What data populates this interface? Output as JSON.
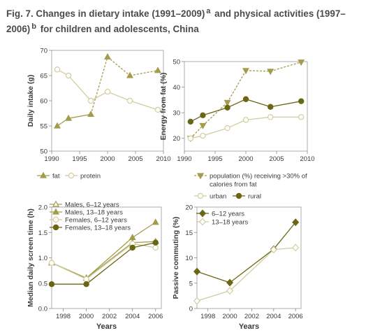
{
  "figure": {
    "title_prefix": "Fig. 7. Changes in dietary intake (1991–2009)",
    "title_sup_a": "a",
    "title_middle": " and physical activities (1997–2006)",
    "title_sup_b": "b",
    "title_suffix": " for children and adolescents, China"
  },
  "colors": {
    "series_dark": "#6b6614",
    "series_light": "#d2cd9e",
    "series_mid": "#a49c4c",
    "axis": "#8a8a8a",
    "frame": "#9a9a9a",
    "text": "#3a3a3a"
  },
  "chart_data": [
    {
      "type": "line",
      "ylabel": "Daily intake (g)",
      "xlabel": "",
      "xlim": [
        1990,
        2010
      ],
      "ylim": [
        50,
        70
      ],
      "xticks": [
        1990,
        1995,
        2000,
        2005,
        2010
      ],
      "yticks": [
        50,
        55,
        60,
        65,
        70
      ],
      "grid": false,
      "legend_position": "bottom",
      "legend_columns": 2,
      "series": [
        {
          "name": "fat",
          "marker": "triangle-up",
          "filled": true,
          "dashed_from_index": 2,
          "color": "#a49c4c",
          "x": [
            1991,
            1993,
            1997,
            2000,
            2004,
            2009
          ],
          "y": [
            55,
            56.5,
            57.3,
            68.7,
            65,
            66
          ]
        },
        {
          "name": "protein",
          "marker": "circle",
          "filled": false,
          "color": "#d2cd9e",
          "x": [
            1991,
            1993,
            1997,
            2000,
            2004,
            2009
          ],
          "y": [
            66.2,
            65,
            60,
            61.8,
            60,
            58.2
          ]
        }
      ]
    },
    {
      "type": "line",
      "ylabel": "Energy from fat (%)",
      "xlabel": "",
      "xlim": [
        1990,
        2010
      ],
      "ylim": [
        15,
        50
      ],
      "xticks": [
        1990,
        1995,
        2000,
        2005,
        2010
      ],
      "yticks": [
        20,
        30,
        40,
        50
      ],
      "grid": false,
      "legend_position": "bottom",
      "legend_columns": 2,
      "series": [
        {
          "name": "population (%) receiving >30% of calories from fat",
          "marker": "triangle-down",
          "filled": true,
          "dashed": true,
          "color": "#a49c4c",
          "x": [
            1991,
            1993,
            1997,
            2000,
            2004,
            2009
          ],
          "y": [
            20,
            25,
            34,
            46.5,
            46.2,
            49.8
          ]
        },
        {
          "name": "urban",
          "marker": "circle",
          "filled": false,
          "color": "#d2cd9e",
          "x": [
            1991,
            1993,
            1997,
            2000,
            2004,
            2009
          ],
          "y": [
            20,
            21,
            24,
            27.2,
            28.3,
            28.3
          ]
        },
        {
          "name": "rural",
          "marker": "circle",
          "filled": true,
          "color": "#6b6614",
          "x": [
            1991,
            1993,
            1997,
            2000,
            2004,
            2009
          ],
          "y": [
            26.5,
            29,
            32,
            35.3,
            32.3,
            34.5
          ]
        }
      ]
    },
    {
      "type": "line",
      "ylabel": "Median daily screen time (h)",
      "xlabel": "Years",
      "xlim": [
        1997,
        2006.5
      ],
      "ylim": [
        0,
        2.0
      ],
      "xticks": [
        1998,
        2000,
        2002,
        2004,
        2006
      ],
      "yticks": [
        0.0,
        0.5,
        1.0,
        1.5,
        2.0
      ],
      "ytick_labels": [
        "0.0",
        "0.5",
        "1.0",
        "1.5",
        "2.0"
      ],
      "grid": false,
      "legend_position": "top-left",
      "legend_columns": 1,
      "series": [
        {
          "name": "Males, 6–12 years",
          "marker": "triangle-up",
          "filled": false,
          "color": "#a49c4c",
          "x": [
            1997,
            2000,
            2004,
            2006
          ],
          "y": [
            0.9,
            0.6,
            1.3,
            1.32
          ]
        },
        {
          "name": "Males, 13–18 years",
          "marker": "triangle-up",
          "filled": true,
          "color": "#a49c4c",
          "x": [
            1997,
            2000,
            2004,
            2006
          ],
          "y": [
            0.9,
            0.6,
            1.4,
            1.7
          ]
        },
        {
          "name": "Females, 6–12 years",
          "marker": "circle",
          "filled": false,
          "color": "#d2cd9e",
          "x": [
            1997,
            2000,
            2004,
            2006
          ],
          "y": [
            0.9,
            0.58,
            1.28,
            1.2
          ]
        },
        {
          "name": "Females, 13–18 years",
          "marker": "circle",
          "filled": true,
          "color": "#6b6614",
          "x": [
            1997,
            2000,
            2004,
            2006
          ],
          "y": [
            0.48,
            0.48,
            1.2,
            1.3
          ]
        }
      ]
    },
    {
      "type": "line",
      "ylabel": "Passive commuting (%)",
      "xlabel": "Years",
      "xlim": [
        1997,
        2006.5
      ],
      "ylim": [
        0,
        20
      ],
      "xticks": [
        1998,
        2000,
        2002,
        2004,
        2006
      ],
      "yticks": [
        0,
        5,
        10,
        15,
        20
      ],
      "grid": false,
      "legend_position": "top-left",
      "legend_columns": 1,
      "series": [
        {
          "name": "6–12 years",
          "marker": "diamond",
          "filled": true,
          "color": "#6b6614",
          "x": [
            1997,
            2000,
            2004,
            2006
          ],
          "y": [
            7.3,
            5.1,
            11.7,
            17
          ]
        },
        {
          "name": "13–18 years",
          "marker": "diamond",
          "filled": false,
          "color": "#d2cd9e",
          "x": [
            1997,
            2000,
            2004,
            2006
          ],
          "y": [
            1.5,
            3.5,
            11.6,
            12
          ]
        }
      ]
    }
  ]
}
